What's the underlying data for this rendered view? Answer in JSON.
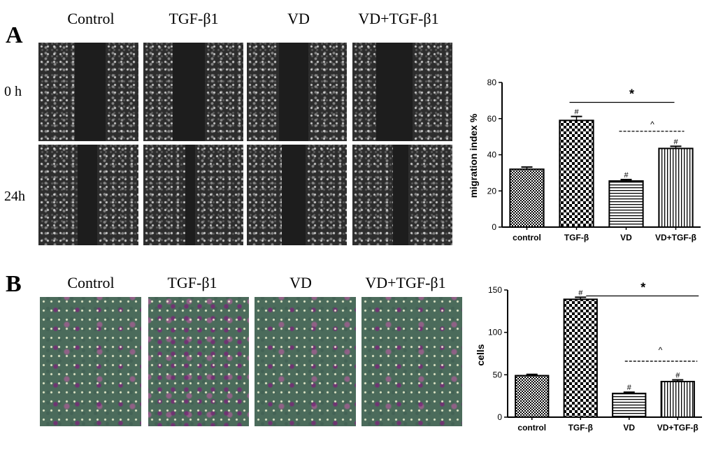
{
  "panel_a": {
    "letter": "A",
    "column_labels": [
      "Control",
      "TGF-β1",
      "VD",
      "VD+TGF-β1"
    ],
    "row_labels": [
      "0 h",
      "24h"
    ]
  },
  "panel_b": {
    "letter": "B",
    "column_labels": [
      "Control",
      "TGF-β1",
      "VD",
      "VD+TGF-β1"
    ]
  },
  "chart_data": [
    {
      "type": "bar",
      "panel": "A",
      "categories": [
        "control",
        "TGF-β",
        "VD",
        "VD+TGF-β"
      ],
      "values": [
        32,
        59,
        25.5,
        43.5
      ],
      "errors": [
        1.2,
        2.2,
        0.8,
        1.2
      ],
      "ylabel": "migration index %",
      "xlabel": "",
      "ylim": [
        0,
        80
      ],
      "yticks": [
        0,
        20,
        40,
        60,
        80
      ],
      "bar_patterns": [
        "fine-check",
        "large-check",
        "horizontal-lines",
        "vertical-lines"
      ],
      "bar_marks": [
        "",
        "#",
        "#",
        "#"
      ],
      "annotations": [
        {
          "symbol": "*",
          "from": "TGF-β",
          "to": "VD+TGF-β",
          "line": "solid"
        },
        {
          "symbol": "^",
          "from": "VD",
          "to": "VD+TGF-β",
          "line": "dashed"
        }
      ]
    },
    {
      "type": "bar",
      "panel": "B",
      "categories": [
        "control",
        "TGF-β",
        "VD",
        "VD+TGF-β"
      ],
      "values": [
        49,
        139,
        28,
        42
      ],
      "errors": [
        1.5,
        2.5,
        1.5,
        2
      ],
      "ylabel": "cells",
      "xlabel": "",
      "ylim": [
        0,
        150
      ],
      "yticks": [
        0,
        50,
        100,
        150
      ],
      "bar_patterns": [
        "fine-check",
        "large-check",
        "horizontal-lines",
        "vertical-lines"
      ],
      "bar_marks": [
        "",
        "#",
        "#",
        "#"
      ],
      "annotations": [
        {
          "symbol": "*",
          "from": "TGF-β",
          "to": "VD+TGF-β",
          "line": "solid"
        },
        {
          "symbol": "^",
          "from": "VD",
          "to": "VD+TGF-β",
          "line": "dashed"
        }
      ]
    }
  ]
}
